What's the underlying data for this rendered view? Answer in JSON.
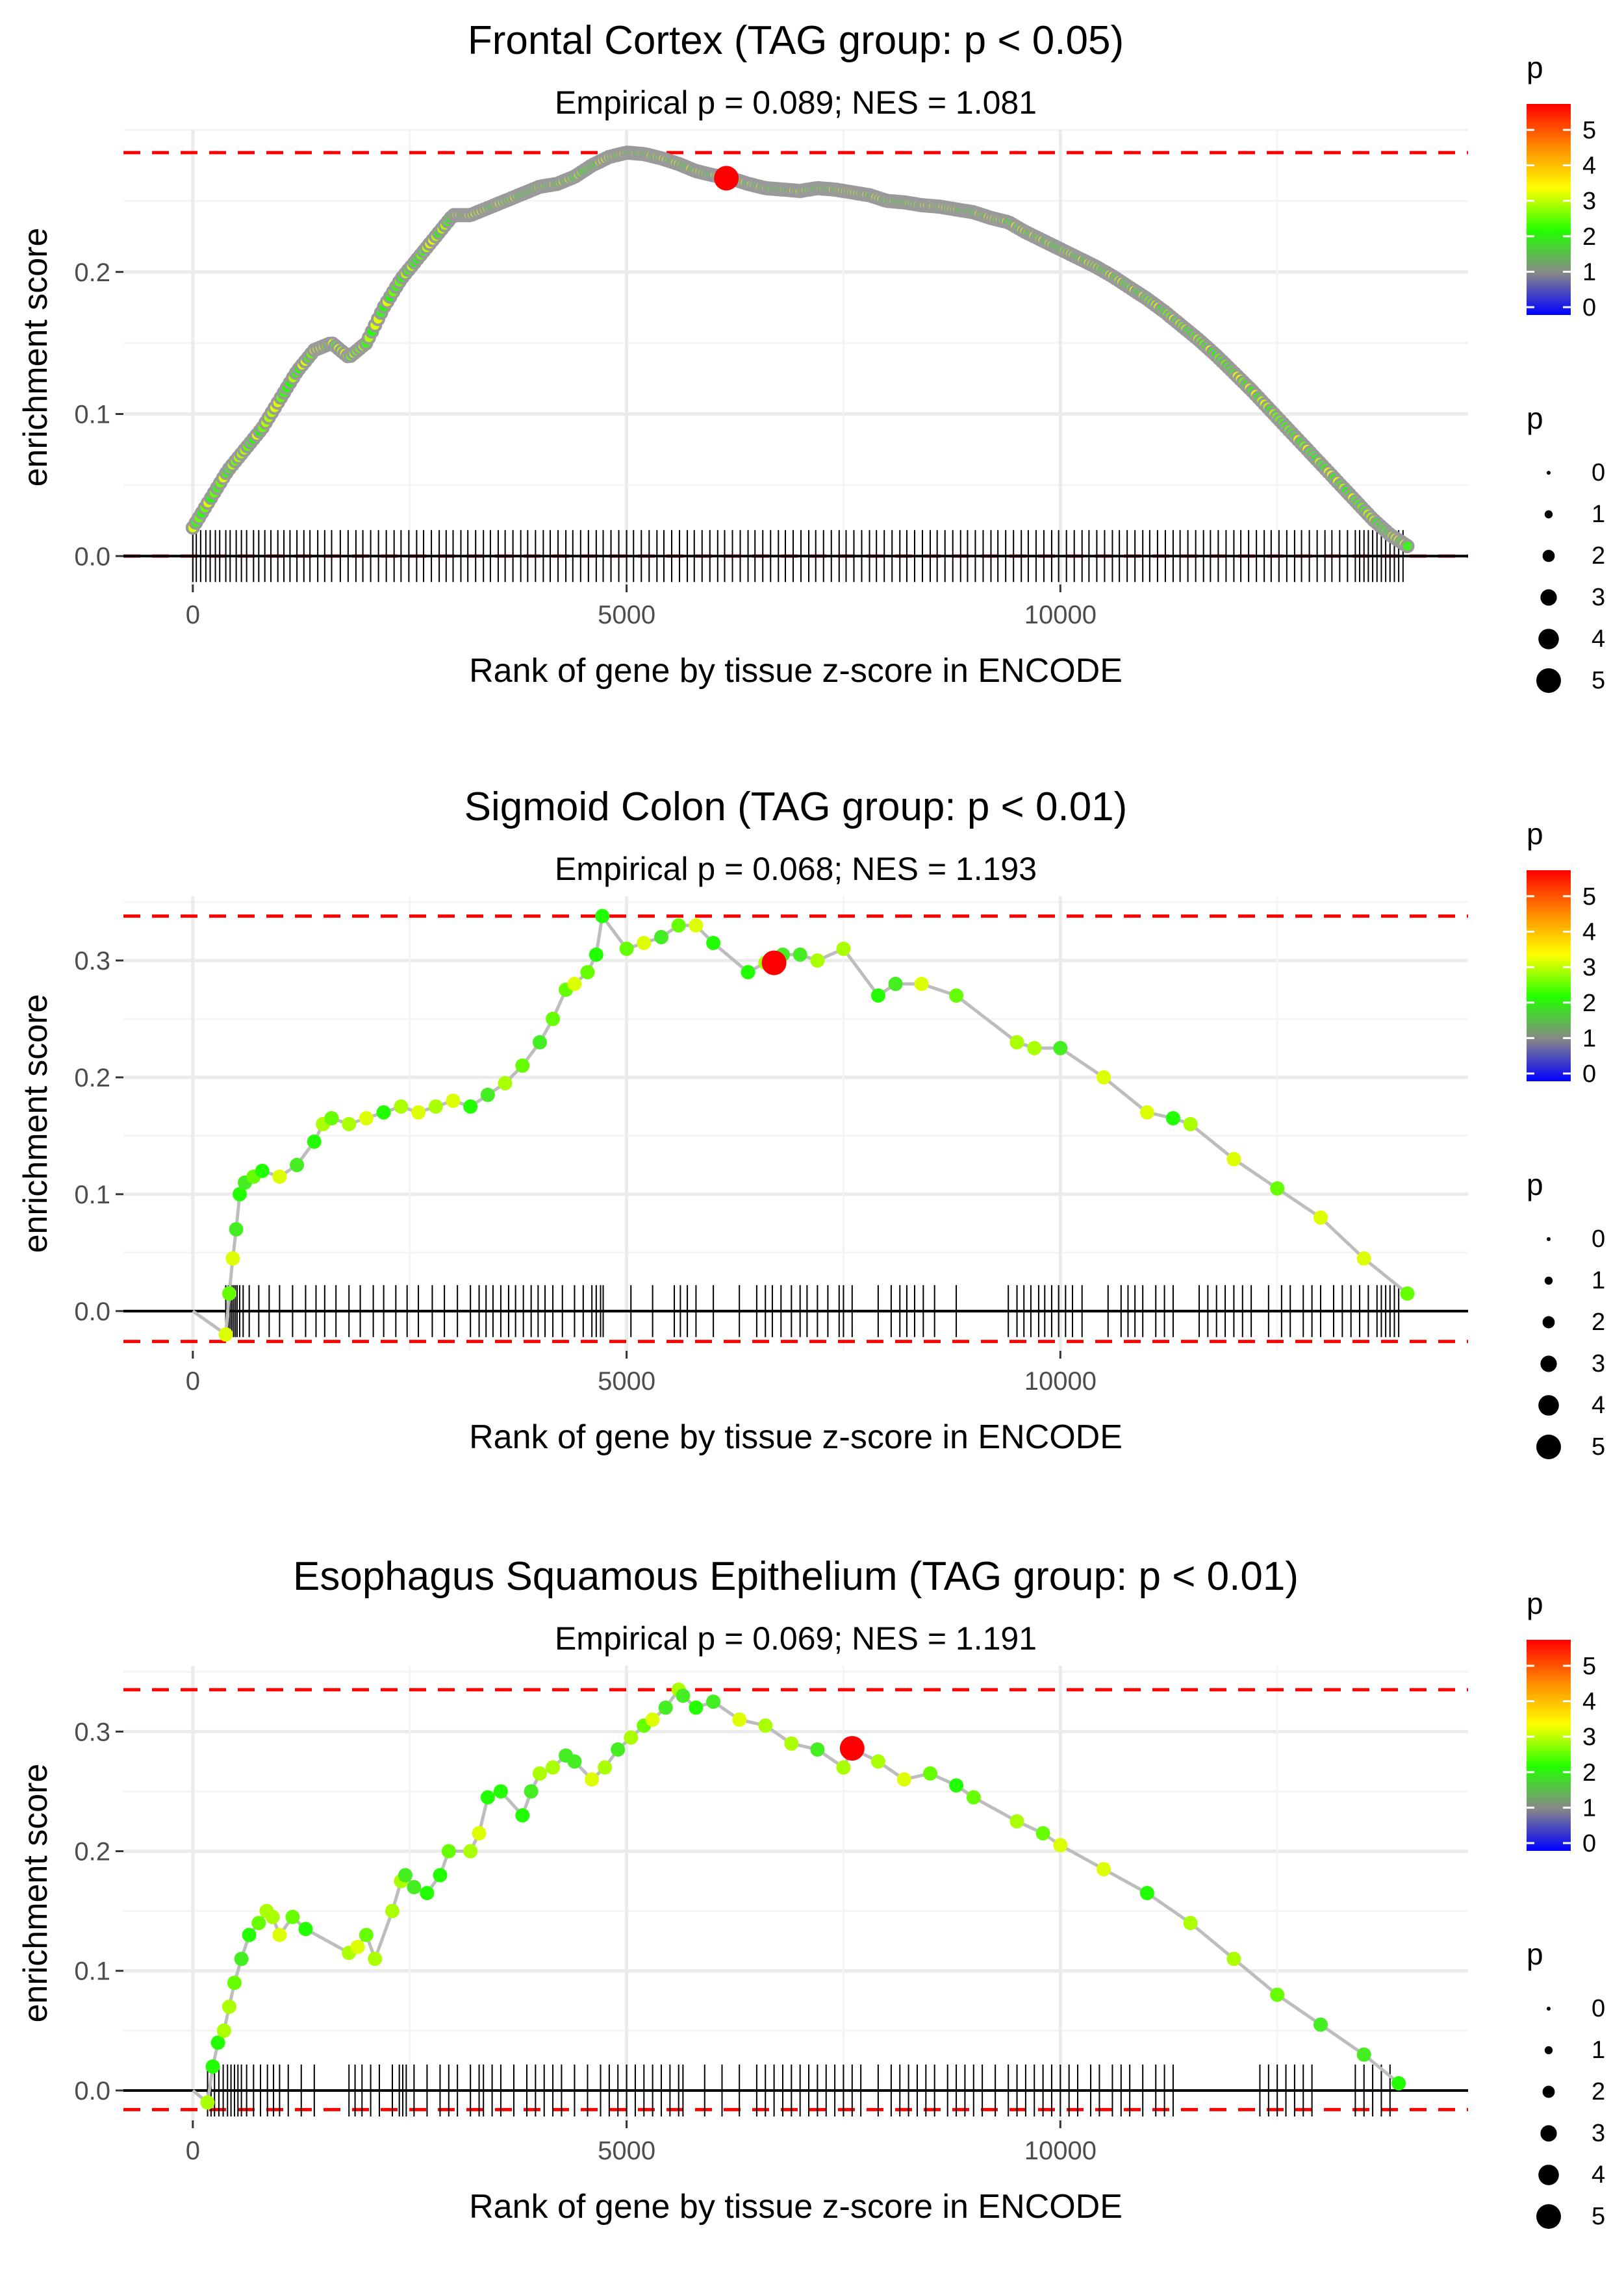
{
  "chart_data": [
    {
      "type": "scatter",
      "subtype": "gsea-enrichment",
      "title": "Frontal Cortex (TAG group: p < 0.05)",
      "subtitle": "Empirical p = 0.089; NES = 1.081",
      "xlabel": "Rank of gene by tissue z-score in ENCODE",
      "ylabel": "enrichment score",
      "xlim": [
        -800,
        14700
      ],
      "ylim": [
        -0.02,
        0.3
      ],
      "xticks": [
        0,
        5000,
        10000
      ],
      "xticklabels": [
        "0",
        "5000",
        "10000"
      ],
      "yticks": [
        0.0,
        0.1,
        0.2
      ],
      "yticklabels": [
        "0.0",
        "0.1",
        "0.2"
      ],
      "max_es": 0.284,
      "min_es": 0.0,
      "peak": {
        "x": 6150,
        "y": 0.266
      },
      "curve_mode": "dense",
      "curve_x": [
        0,
        200,
        400,
        600,
        800,
        1000,
        1200,
        1400,
        1600,
        1800,
        2000,
        2200,
        2400,
        2600,
        2800,
        3000,
        3200,
        3400,
        3600,
        3800,
        4000,
        4200,
        4400,
        4600,
        4800,
        5000,
        5200,
        5400,
        5600,
        5800,
        6000,
        6200,
        6400,
        6600,
        6800,
        7000,
        7200,
        7400,
        7600,
        7800,
        8000,
        8200,
        8400,
        8600,
        8800,
        9000,
        9200,
        9400,
        9600,
        9800,
        10000,
        10200,
        10400,
        10600,
        10800,
        11000,
        11200,
        11400,
        11600,
        11800,
        12000,
        12200,
        12400,
        12600,
        12800,
        13000,
        13200,
        13400,
        13600,
        13800,
        14000
      ],
      "curve_y": [
        0.02,
        0.04,
        0.06,
        0.075,
        0.09,
        0.11,
        0.13,
        0.145,
        0.15,
        0.14,
        0.15,
        0.175,
        0.195,
        0.21,
        0.225,
        0.24,
        0.24,
        0.245,
        0.25,
        0.255,
        0.26,
        0.262,
        0.267,
        0.275,
        0.281,
        0.284,
        0.283,
        0.28,
        0.276,
        0.271,
        0.268,
        0.266,
        0.262,
        0.259,
        0.258,
        0.257,
        0.259,
        0.258,
        0.256,
        0.254,
        0.25,
        0.249,
        0.247,
        0.246,
        0.244,
        0.242,
        0.238,
        0.235,
        0.228,
        0.222,
        0.216,
        0.21,
        0.204,
        0.197,
        0.189,
        0.181,
        0.172,
        0.162,
        0.152,
        0.141,
        0.129,
        0.117,
        0.104,
        0.091,
        0.078,
        0.065,
        0.052,
        0.039,
        0.026,
        0.015,
        0.007
      ],
      "hits": [
        0,
        40,
        90,
        150,
        200,
        260,
        310,
        380,
        430,
        500,
        560,
        620,
        700,
        760,
        830,
        900,
        980,
        1050,
        1120,
        1200,
        1280,
        1350,
        1440,
        1520,
        1600,
        1700,
        1790,
        1880,
        1960,
        2050,
        2140,
        2230,
        2320,
        2400,
        2490,
        2580,
        2660,
        2750,
        2840,
        2920,
        3000,
        3090,
        3170,
        3260,
        3350,
        3430,
        3520,
        3600,
        3690,
        3780,
        3860,
        3950,
        4040,
        4120,
        4210,
        4300,
        4380,
        4470,
        4560,
        4650,
        4730,
        4820,
        4910,
        5000,
        5080,
        5170,
        5260,
        5350,
        5430,
        5520,
        5610,
        5700,
        5780,
        5870,
        5960,
        6050,
        6130,
        6220,
        6310,
        6400,
        6480,
        6570,
        6660,
        6750,
        6830,
        6920,
        7010,
        7100,
        7180,
        7270,
        7360,
        7450,
        7530,
        7620,
        7710,
        7800,
        7880,
        7970,
        8060,
        8150,
        8230,
        8320,
        8410,
        8500,
        8580,
        8670,
        8760,
        8850,
        8930,
        9020,
        9110,
        9200,
        9280,
        9370,
        9460,
        9550,
        9630,
        9720,
        9810,
        9900,
        9980,
        10070,
        10160,
        10250,
        10330,
        10420,
        10510,
        10600,
        10680,
        10770,
        10860,
        10950,
        11030,
        11120,
        11210,
        11300,
        11380,
        11470,
        11560,
        11650,
        11730,
        11820,
        11910,
        12000,
        12080,
        12170,
        12260,
        12350,
        12430,
        12520,
        12610,
        12700,
        12780,
        12870,
        12960,
        13050,
        13130,
        13220,
        13310,
        13400,
        13450,
        13500,
        13550,
        13600,
        13650,
        13700,
        13750,
        13800,
        13850,
        13900,
        13950
      ]
    },
    {
      "type": "scatter",
      "subtype": "gsea-enrichment",
      "title": "Sigmoid Colon (TAG group: p < 0.01)",
      "subtitle": "Empirical p = 0.068; NES = 1.193",
      "xlabel": "Rank of gene by tissue z-score in ENCODE",
      "ylabel": "enrichment score",
      "xlim": [
        -800,
        14700
      ],
      "ylim": [
        -0.034,
        0.355
      ],
      "xticks": [
        0,
        5000,
        10000
      ],
      "xticklabels": [
        "0",
        "5000",
        "10000"
      ],
      "yticks": [
        0.0,
        0.1,
        0.2,
        0.3
      ],
      "yticklabels": [
        "0.0",
        "0.1",
        "0.2",
        "0.3"
      ],
      "max_es": 0.338,
      "min_es": -0.026,
      "peak": {
        "x": 6700,
        "y": 0.298
      },
      "curve_mode": "sparse",
      "curve_x": [
        0,
        380,
        420,
        460,
        500,
        540,
        600,
        700,
        800,
        1000,
        1200,
        1400,
        1500,
        1600,
        1800,
        2000,
        2200,
        2400,
        2600,
        2800,
        3000,
        3200,
        3400,
        3600,
        3800,
        4000,
        4150,
        4300,
        4400,
        4550,
        4650,
        4720,
        5000,
        5200,
        5400,
        5600,
        5800,
        6000,
        6400,
        6600,
        6800,
        7000,
        7200,
        7500,
        7900,
        8100,
        8400,
        8800,
        9500,
        9700,
        10000,
        10500,
        11000,
        11300,
        11500,
        12000,
        12500,
        13000,
        13500,
        14000
      ],
      "curve_y": [
        0.0,
        -0.02,
        0.015,
        0.045,
        0.07,
        0.1,
        0.11,
        0.115,
        0.12,
        0.115,
        0.125,
        0.145,
        0.16,
        0.165,
        0.16,
        0.165,
        0.17,
        0.175,
        0.17,
        0.175,
        0.18,
        0.175,
        0.185,
        0.195,
        0.21,
        0.23,
        0.25,
        0.275,
        0.28,
        0.29,
        0.305,
        0.338,
        0.31,
        0.315,
        0.32,
        0.33,
        0.33,
        0.315,
        0.29,
        0.298,
        0.305,
        0.305,
        0.3,
        0.31,
        0.27,
        0.28,
        0.28,
        0.27,
        0.23,
        0.225,
        0.225,
        0.2,
        0.17,
        0.165,
        0.16,
        0.13,
        0.105,
        0.08,
        0.045,
        0.015
      ],
      "hits": [
        380,
        410,
        430,
        450,
        470,
        490,
        510,
        540,
        580,
        650,
        760,
        880,
        1000,
        1150,
        1300,
        1420,
        1520,
        1650,
        1800,
        1930,
        2080,
        2200,
        2340,
        2470,
        2600,
        2760,
        2900,
        3050,
        3200,
        3300,
        3380,
        3460,
        3550,
        3640,
        3720,
        3810,
        3900,
        3980,
        4060,
        4150,
        4260,
        4400,
        4500,
        4600,
        4650,
        4700,
        4730,
        5050,
        5300,
        5550,
        5620,
        5700,
        5800,
        6000,
        6300,
        6500,
        6600,
        6680,
        6780,
        6900,
        7000,
        7080,
        7200,
        7320,
        7450,
        7500,
        7600,
        7900,
        8050,
        8150,
        8230,
        8320,
        8420,
        8550,
        8800,
        9400,
        9500,
        9580,
        9660,
        9750,
        9820,
        9900,
        9980,
        10060,
        10140,
        10250,
        10550,
        10700,
        10780,
        10860,
        10950,
        11100,
        11200,
        11300,
        11600,
        11700,
        11800,
        11900,
        12000,
        12100,
        12200,
        12400,
        12550,
        12650,
        12800,
        12900,
        13000,
        13150,
        13250,
        13350,
        13450,
        13550,
        13650,
        13700,
        13750,
        13800,
        13850,
        13900
      ]
    },
    {
      "type": "scatter",
      "subtype": "gsea-enrichment",
      "title": "Esophagus Squamous Epithelium (TAG group: p < 0.01)",
      "subtitle": "Empirical p = 0.069; NES = 1.191",
      "xlabel": "Rank of gene by tissue z-score in ENCODE",
      "ylabel": "enrichment score",
      "xlim": [
        -800,
        14700
      ],
      "ylim": [
        -0.025,
        0.355
      ],
      "xticks": [
        0,
        5000,
        10000
      ],
      "xticklabels": [
        "0",
        "5000",
        "10000"
      ],
      "yticks": [
        0.0,
        0.1,
        0.2,
        0.3
      ],
      "yticklabels": [
        "0.0",
        "0.1",
        "0.2",
        "0.3"
      ],
      "max_es": 0.335,
      "min_es": -0.016,
      "peak": {
        "x": 7600,
        "y": 0.286
      },
      "curve_mode": "sparse",
      "curve_x": [
        0,
        170,
        230,
        290,
        360,
        420,
        480,
        560,
        650,
        760,
        850,
        920,
        1000,
        1150,
        1300,
        1800,
        1900,
        2000,
        2100,
        2300,
        2400,
        2450,
        2550,
        2700,
        2850,
        2950,
        3200,
        3300,
        3400,
        3550,
        3800,
        3900,
        4000,
        4150,
        4300,
        4400,
        4600,
        4750,
        4900,
        5050,
        5200,
        5300,
        5450,
        5600,
        5650,
        5800,
        6000,
        6300,
        6600,
        6900,
        7200,
        7500,
        7600,
        7900,
        8200,
        8500,
        8800,
        9000,
        9500,
        9800,
        10000,
        10500,
        11000,
        11500,
        12000,
        12500,
        13000,
        13500,
        13900
      ],
      "curve_y": [
        0.0,
        -0.01,
        0.02,
        0.04,
        0.05,
        0.07,
        0.09,
        0.11,
        0.13,
        0.14,
        0.15,
        0.145,
        0.13,
        0.145,
        0.135,
        0.115,
        0.12,
        0.13,
        0.11,
        0.15,
        0.175,
        0.18,
        0.17,
        0.165,
        0.18,
        0.2,
        0.2,
        0.215,
        0.245,
        0.25,
        0.23,
        0.25,
        0.265,
        0.27,
        0.28,
        0.275,
        0.26,
        0.27,
        0.285,
        0.295,
        0.305,
        0.31,
        0.32,
        0.335,
        0.33,
        0.32,
        0.325,
        0.31,
        0.305,
        0.29,
        0.285,
        0.27,
        0.286,
        0.275,
        0.26,
        0.265,
        0.255,
        0.245,
        0.225,
        0.215,
        0.205,
        0.185,
        0.165,
        0.14,
        0.11,
        0.08,
        0.055,
        0.03,
        0.006
      ],
      "hits": [
        170,
        210,
        250,
        300,
        350,
        400,
        440,
        480,
        520,
        560,
        620,
        700,
        780,
        860,
        930,
        1000,
        1100,
        1250,
        1400,
        1800,
        1870,
        1950,
        2050,
        2150,
        2300,
        2380,
        2420,
        2460,
        2550,
        2700,
        2850,
        2950,
        3050,
        3200,
        3300,
        3350,
        3450,
        3550,
        3700,
        3850,
        3950,
        4050,
        4150,
        4250,
        4400,
        4550,
        4700,
        4800,
        4900,
        5000,
        5100,
        5200,
        5300,
        5400,
        5500,
        5600,
        5650,
        5900,
        6100,
        6300,
        6500,
        6600,
        6700,
        6800,
        6900,
        7000,
        7100,
        7200,
        7300,
        7400,
        7500,
        7600,
        7700,
        7900,
        8050,
        8150,
        8250,
        8350,
        8450,
        8550,
        8700,
        8800,
        8900,
        9000,
        9100,
        9250,
        9400,
        9500,
        9600,
        9700,
        9800,
        9900,
        10000,
        10100,
        10200,
        10350,
        10450,
        10600,
        10700,
        10800,
        10950,
        11100,
        11200,
        11300,
        12300,
        12400,
        12500,
        12600,
        12700,
        12800,
        12900,
        13400,
        13500,
        13600,
        13700,
        13800
      ]
    }
  ],
  "legend": {
    "colorbar_title": "p",
    "colorbar_labels": [
      "5",
      "4",
      "3",
      "2",
      "1",
      "0"
    ],
    "size_title": "p",
    "size_labels": [
      "0",
      "1",
      "2",
      "3",
      "4",
      "5"
    ],
    "gradient": [
      "#ff0000",
      "#ff8800",
      "#ffff00",
      "#22ff00",
      "#888888",
      "#0000ff"
    ]
  }
}
